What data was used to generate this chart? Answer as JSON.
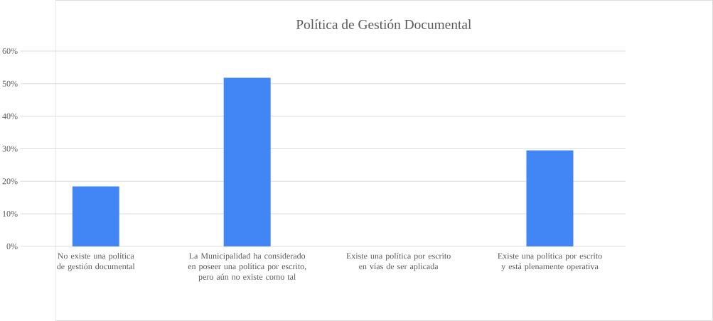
{
  "chart_data": {
    "type": "bar",
    "title": "Política de Gestión Documental",
    "categories": [
      "No existe una política de gestión documental",
      "La Municipalidad ha considerado en poseer una política por escrito, pero aún no existe como tal",
      "Existe una política por escrito en vías de ser aplicada",
      "Existe una política por escrito y está plenamente operativa"
    ],
    "values": [
      18.4,
      51.8,
      0,
      29.5
    ],
    "color": "#4285f4",
    "ylim": [
      0,
      60
    ],
    "yticks": [
      {
        "value": 0,
        "label": "0%"
      },
      {
        "value": 10,
        "label": "10%"
      },
      {
        "value": 20,
        "label": "20%"
      },
      {
        "value": 30,
        "label": "30%"
      },
      {
        "value": 40,
        "label": "40%"
      },
      {
        "value": 50,
        "label": "50%"
      },
      {
        "value": 60,
        "label": "60%"
      }
    ],
    "grid": "y"
  }
}
